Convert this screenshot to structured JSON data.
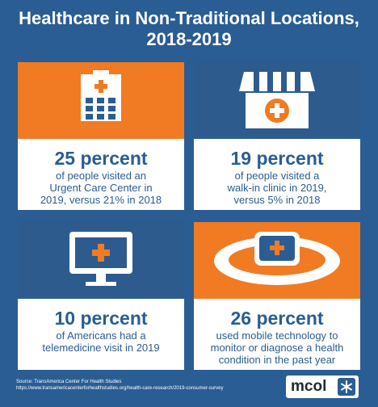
{
  "title": {
    "line1": "Healthcare in Non-Traditional Locations,",
    "line2": "2018-2019"
  },
  "cards": [
    {
      "headline": "25 percent",
      "lines": [
        "of people visited an",
        "Urgent Care Center in",
        "2019, versus 21% in 2018"
      ],
      "icon": "hospital-building-icon",
      "color": "#f07b22"
    },
    {
      "headline": "19 percent",
      "lines": [
        "of people visited a",
        "walk-in clinic in 2019,",
        "versus 5% in 2018"
      ],
      "icon": "walk-in-clinic-store-icon",
      "color": "#2d5b8e"
    },
    {
      "headline": "10 percent",
      "lines": [
        "of Americans had a",
        "telemedicine visit in 2019"
      ],
      "icon": "computer-monitor-medical-cross-icon",
      "color": "#2d5b8e"
    },
    {
      "headline": "26 percent",
      "lines": [
        "used mobile technology to",
        "monitor or diagnose a health",
        "condition in the past year"
      ],
      "icon": "smartwatch-medical-cross-icon",
      "color": "#f07b22"
    }
  ],
  "source": {
    "line1": "Source: TransAmerica Center For Health Studies",
    "line2": "https://www.transamericacenterforhealthstudies.org/health-care-research/2019-consumer-survey"
  },
  "logo": {
    "text": "mcol",
    "icon": "snowflake-badge-icon"
  }
}
